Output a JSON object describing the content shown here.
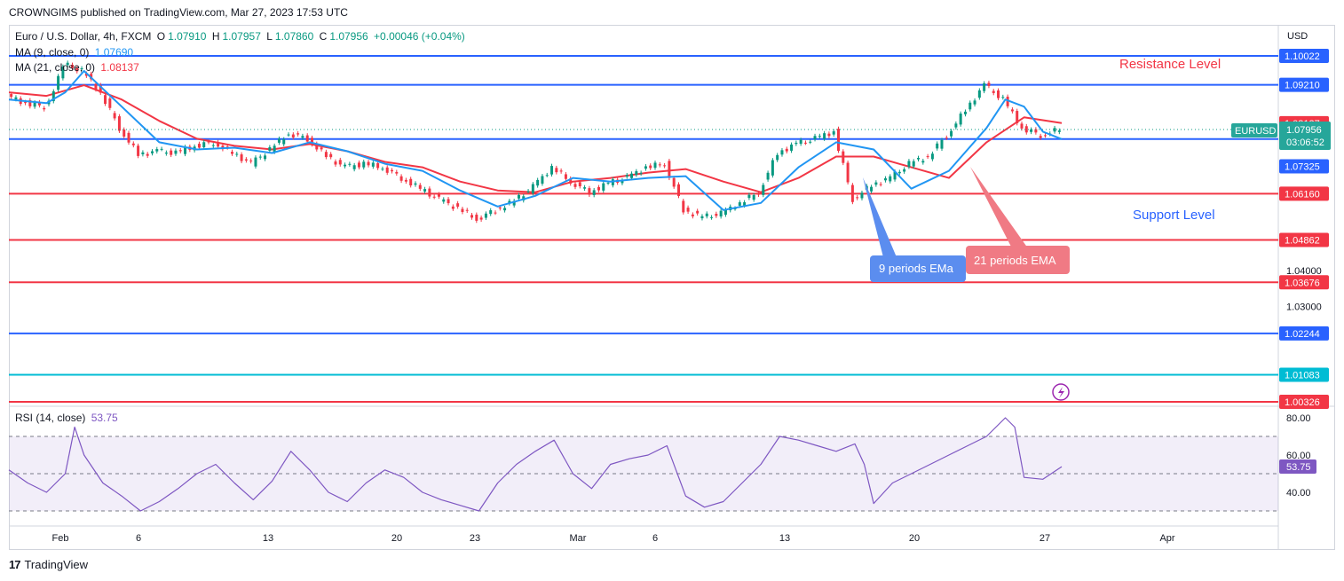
{
  "header": {
    "credit": "CROWNGIMS published on TradingView.com, Mar 27, 2023 17:53 UTC"
  },
  "legend": {
    "symbol": "Euro / U.S. Dollar, 4h, FXCM",
    "open_label": "O",
    "open": "1.07910",
    "high_label": "H",
    "high": "1.07957",
    "low_label": "L",
    "low": "1.07860",
    "close_label": "C",
    "close": "1.07956",
    "change": "+0.00046 (+0.04%)",
    "ma9_label": "MA (9, close, 0)",
    "ma9_value": "1.07690",
    "ma21_label": "MA (21, close, 0)",
    "ma21_value": "1.08137"
  },
  "rsi_legend": {
    "label": "RSI (14, close)",
    "value": "53.75"
  },
  "currency": "USD",
  "symbol_tag": "EURUSD",
  "price_tag": {
    "value": "1.07956",
    "countdown": "03:06:52"
  },
  "annotations": {
    "resistance": "Resistance Level",
    "support": "Support Level",
    "ema9": "9 periods EMa",
    "ema21": "21 periods EMA"
  },
  "colors": {
    "blue": "#2962ff",
    "red": "#f23645",
    "green": "#089981",
    "cyan": "#00bcd4",
    "rsi": "#7e57c2",
    "ma9": "#2196f3",
    "ma21": "#f23645"
  },
  "footer": {
    "brand": "TradingView"
  },
  "chart_data": {
    "type": "line",
    "title": "Euro / U.S. Dollar, 4h, FXCM",
    "price_axis_ticks": [
      "1.04000",
      "1.03000"
    ],
    "levels": [
      {
        "value": "1.10022",
        "color": "#2962ff"
      },
      {
        "value": "1.09210",
        "color": "#2962ff"
      },
      {
        "value": "1.08137",
        "color": "#f23645"
      },
      {
        "value": "1.07690",
        "color": "#2962ff"
      },
      {
        "value": "1.07325",
        "color": "#2962ff"
      },
      {
        "value": "1.06160",
        "color": "#f23645"
      },
      {
        "value": "1.04862",
        "color": "#f23645"
      },
      {
        "value": "1.03676",
        "color": "#f23645"
      },
      {
        "value": "1.02244",
        "color": "#2962ff"
      },
      {
        "value": "1.01083",
        "color": "#00bcd4"
      },
      {
        "value": "1.00326",
        "color": "#f23645"
      }
    ],
    "x_ticks": [
      "Feb",
      "6",
      "13",
      "20",
      "23",
      "Mar",
      "6",
      "13",
      "20",
      "27",
      "Apr"
    ],
    "price_series": {
      "x_days": [
        0,
        1,
        2,
        2.5,
        3,
        4,
        5,
        6,
        7,
        8,
        9,
        10,
        11,
        12,
        13,
        14,
        15,
        16,
        17,
        18,
        19,
        20,
        21,
        22,
        23,
        24,
        25,
        26,
        27,
        28,
        29,
        30,
        31,
        32,
        33,
        34,
        35,
        36,
        37,
        38,
        39,
        40,
        41,
        42,
        43,
        44,
        45,
        46,
        47,
        48,
        49,
        50,
        51,
        52,
        53,
        54,
        55,
        56
      ],
      "close": [
        1.089,
        1.087,
        1.086,
        1.0905,
        1.098,
        1.096,
        1.09,
        1.08,
        1.0725,
        1.0735,
        1.073,
        1.075,
        1.076,
        1.073,
        1.07,
        1.074,
        1.0785,
        1.077,
        1.072,
        1.069,
        1.07,
        1.069,
        1.066,
        1.063,
        1.06,
        1.0575,
        1.0545,
        1.057,
        1.0595,
        1.0635,
        1.069,
        1.065,
        1.062,
        1.0645,
        1.066,
        1.069,
        1.07,
        1.057,
        1.055,
        1.056,
        1.059,
        1.062,
        1.073,
        1.0755,
        1.077,
        1.079,
        1.06,
        1.064,
        1.066,
        1.07,
        1.072,
        1.078,
        1.085,
        1.092,
        1.088,
        1.08,
        1.078,
        1.0796
      ]
    },
    "ma9": {
      "x_days": [
        0,
        2,
        3,
        4,
        6,
        8,
        10,
        12,
        14,
        16,
        18,
        20,
        22,
        24,
        26,
        28,
        30,
        32,
        34,
        36,
        38,
        40,
        42,
        44,
        46,
        48,
        50,
        52,
        53,
        54,
        55,
        56
      ],
      "values": [
        1.088,
        1.087,
        1.09,
        1.096,
        1.086,
        1.076,
        1.074,
        1.0745,
        1.073,
        1.076,
        1.0735,
        1.07,
        1.068,
        1.0625,
        1.058,
        1.061,
        1.066,
        1.065,
        1.066,
        1.0665,
        1.057,
        1.059,
        1.069,
        1.076,
        1.074,
        1.063,
        1.068,
        1.08,
        1.088,
        1.086,
        1.079,
        1.0769
      ]
    },
    "ma21": {
      "x_days": [
        0,
        2,
        4,
        6,
        8,
        10,
        12,
        14,
        16,
        18,
        20,
        22,
        24,
        26,
        28,
        30,
        32,
        34,
        36,
        38,
        40,
        42,
        44,
        46,
        48,
        50,
        52,
        54,
        56
      ],
      "values": [
        1.09,
        1.089,
        1.092,
        1.088,
        1.082,
        1.077,
        1.075,
        1.074,
        1.0755,
        1.0735,
        1.0705,
        1.069,
        1.065,
        1.0625,
        1.062,
        1.065,
        1.066,
        1.0675,
        1.0685,
        1.065,
        1.062,
        1.066,
        1.072,
        1.072,
        1.069,
        1.066,
        1.076,
        1.083,
        1.0814
      ]
    },
    "rsi": {
      "y_ticks": [
        "80.00",
        "60.00",
        "40.00"
      ],
      "bands": [
        70,
        50,
        30
      ],
      "x_days": [
        0,
        1,
        2,
        3,
        3.5,
        4,
        5,
        6,
        7,
        8,
        9,
        10,
        11,
        12,
        13,
        14,
        15,
        16,
        17,
        18,
        19,
        20,
        21,
        22,
        23,
        24,
        25,
        26,
        27,
        28,
        29,
        30,
        31,
        32,
        33,
        34,
        35,
        36,
        37,
        38,
        39,
        40,
        41,
        42,
        43,
        44,
        45,
        45.5,
        46,
        47,
        48,
        49,
        50,
        51,
        52,
        53,
        53.5,
        54,
        55,
        56
      ],
      "values": [
        52,
        45,
        40,
        50,
        75,
        60,
        45,
        38,
        30,
        35,
        42,
        50,
        55,
        45,
        36,
        46,
        62,
        52,
        40,
        35,
        45,
        52,
        48,
        40,
        36,
        33,
        30,
        45,
        55,
        62,
        68,
        50,
        42,
        55,
        58,
        60,
        65,
        38,
        32,
        35,
        45,
        55,
        70,
        68,
        65,
        62,
        66,
        55,
        34,
        45,
        50,
        55,
        60,
        65,
        70,
        80,
        75,
        48,
        47,
        53.75
      ]
    }
  }
}
